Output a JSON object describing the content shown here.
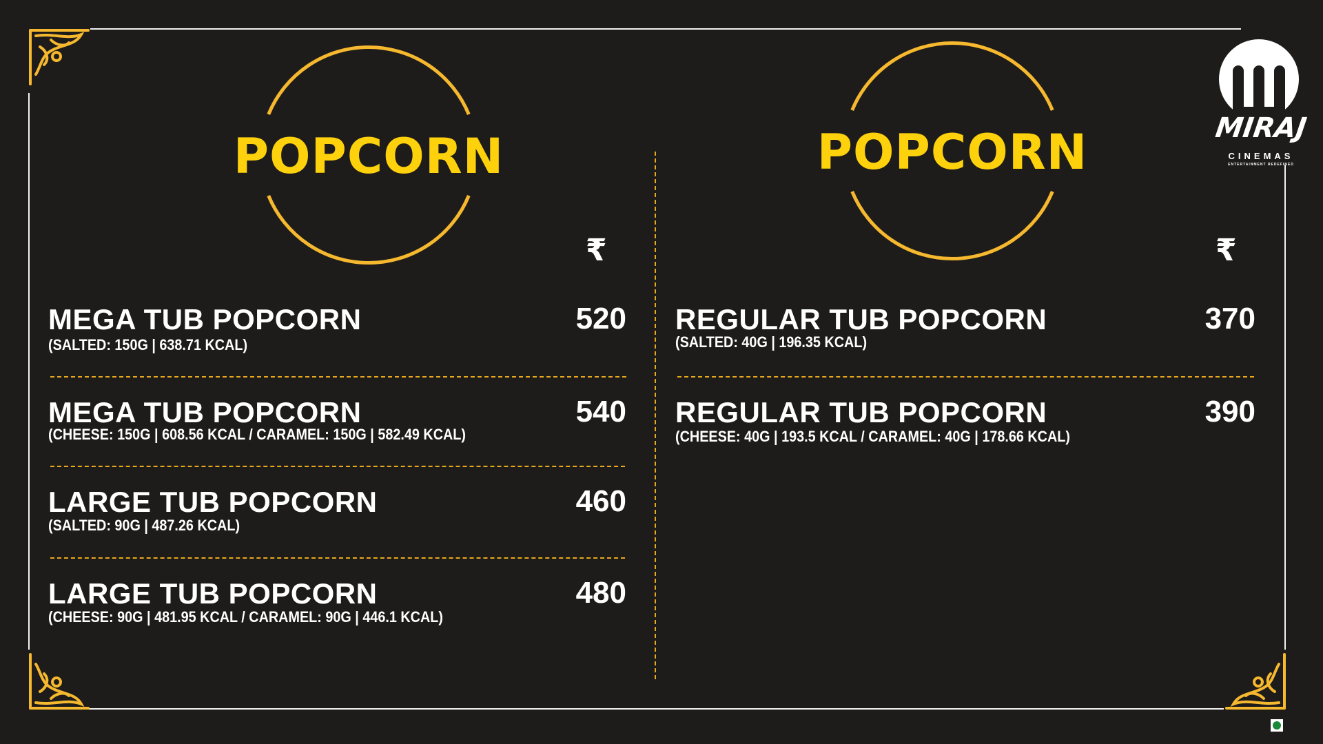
{
  "colors": {
    "background": "#1e1c1a",
    "accent_gold": "#f5b82e",
    "title_yellow": "#fdd10c",
    "text": "#ffffff",
    "veg_green": "#1a8a3a"
  },
  "logo": {
    "brand": "MIRAJ",
    "sub": "CINEMAS",
    "tagline": "ENTERTAINMENT REDEFINED"
  },
  "left": {
    "title": "POPCORN",
    "currency": "₹",
    "items": [
      {
        "name": "MEGA TUB POPCORN",
        "details": "(SALTED: 150G | 638.71 KCAL)",
        "price": "520"
      },
      {
        "name": "MEGA TUB POPCORN",
        "details": "(CHEESE: 150G | 608.56 KCAL  /  CARAMEL: 150G | 582.49 KCAL)",
        "price": "540"
      },
      {
        "name": "LARGE TUB POPCORN",
        "details": "(SALTED: 90G | 487.26 KCAL)",
        "price": "460"
      },
      {
        "name": "LARGE TUB POPCORN",
        "details": "(CHEESE: 90G | 481.95 KCAL  /  CARAMEL: 90G | 446.1 KCAL)",
        "price": "480"
      }
    ]
  },
  "right": {
    "title": "POPCORN",
    "currency": "₹",
    "items": [
      {
        "name": "REGULAR TUB POPCORN",
        "details": "(SALTED: 40G | 196.35 KCAL)",
        "price": "370"
      },
      {
        "name": "REGULAR TUB POPCORN",
        "details": "(CHEESE: 40G | 193.5 KCAL  /  CARAMEL: 40G | 178.66 KCAL)",
        "price": "390"
      }
    ]
  },
  "icons": {
    "veg": "veg-indicator-icon",
    "corner": "ornament-icon"
  }
}
